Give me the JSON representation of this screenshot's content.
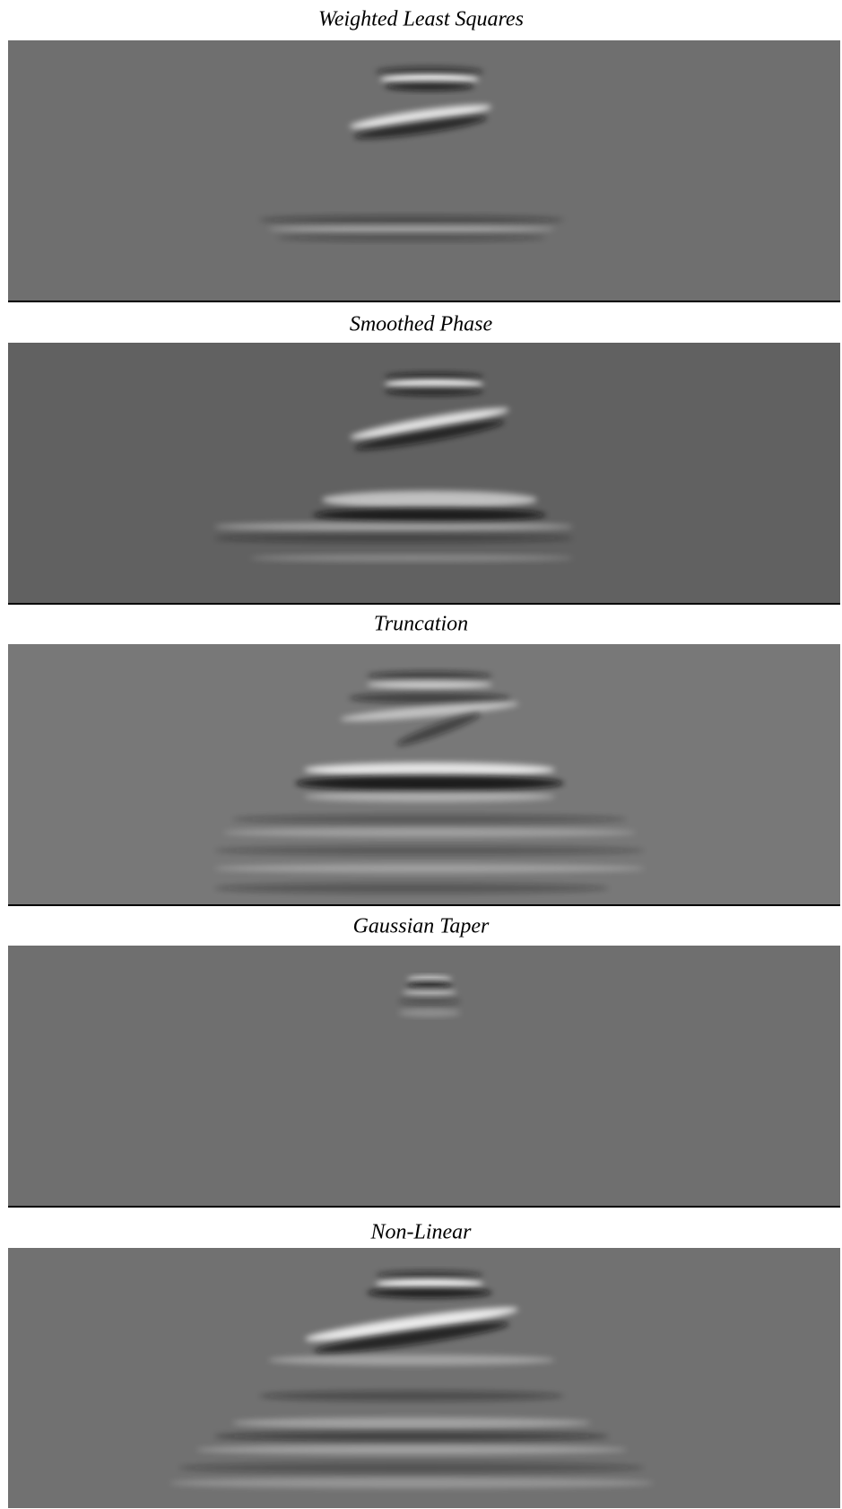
{
  "panels": [
    {
      "title": "Weighted Least Squares"
    },
    {
      "title": "Smoothed Phase"
    },
    {
      "title": "Truncation"
    },
    {
      "title": "Gaussian Taper"
    },
    {
      "title": "Non-Linear"
    }
  ]
}
